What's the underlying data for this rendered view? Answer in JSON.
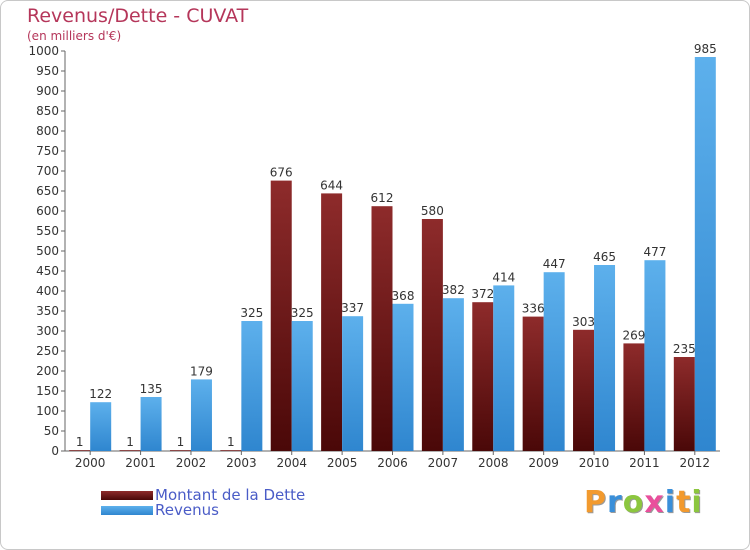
{
  "header": {
    "title": "Revenus/Dette - CUVAT",
    "subtitle": "(en milliers d'€)"
  },
  "chart_data": {
    "type": "bar",
    "title": "Revenus/Dette - CUVAT",
    "subtitle": "(en milliers d'€)",
    "categories": [
      "2000",
      "2001",
      "2002",
      "2003",
      "2004",
      "2005",
      "2006",
      "2007",
      "2008",
      "2009",
      "2010",
      "2011",
      "2012"
    ],
    "series": [
      {
        "name": "Montant de la Dette",
        "color": "#7a1f1f",
        "values": [
          1,
          1,
          1,
          1,
          676,
          644,
          612,
          580,
          372,
          336,
          303,
          269,
          235
        ]
      },
      {
        "name": "Revenus",
        "color": "#4a9fe0",
        "values": [
          122,
          135,
          179,
          325,
          325,
          337,
          368,
          382,
          414,
          447,
          465,
          477,
          985
        ]
      }
    ],
    "yticks": [
      0,
      50,
      100,
      150,
      200,
      250,
      300,
      350,
      400,
      450,
      500,
      550,
      600,
      650,
      700,
      750,
      800,
      850,
      900,
      950,
      1000
    ],
    "ylim": [
      0,
      1000
    ],
    "grid": false,
    "legend_position": "bottom-left"
  },
  "legend": {
    "items": [
      {
        "label": "Montant de la Dette",
        "color": "#7a1f1f"
      },
      {
        "label": "Revenus",
        "color": "#4a9fe0"
      }
    ]
  },
  "logo": {
    "text": "Proxiti",
    "letters": [
      {
        "ch": "P",
        "color": "#f29a2e"
      },
      {
        "ch": "r",
        "color": "#3a8fd9"
      },
      {
        "ch": "o",
        "color": "#8cc63f"
      },
      {
        "ch": "x",
        "color": "#e94f9c"
      },
      {
        "ch": "i",
        "color": "#3a8fd9"
      },
      {
        "ch": "t",
        "color": "#f29a2e"
      },
      {
        "ch": "i",
        "color": "#8cc63f"
      }
    ]
  }
}
